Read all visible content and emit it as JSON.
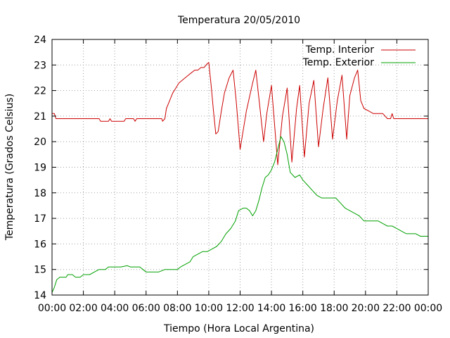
{
  "chart_data": {
    "type": "line",
    "title": "Temperatura 20/05/2010",
    "xlabel": "Tiempo (Hora Local Argentina)",
    "ylabel": "Temperatura (Grados Celsius)",
    "xlim": [
      0,
      24
    ],
    "ylim": [
      14,
      24
    ],
    "x_ticks": [
      {
        "value": 0,
        "label": "00:00"
      },
      {
        "value": 2,
        "label": "02:00"
      },
      {
        "value": 4,
        "label": "04:00"
      },
      {
        "value": 6,
        "label": "06:00"
      },
      {
        "value": 8,
        "label": "08:00"
      },
      {
        "value": 10,
        "label": "10:00"
      },
      {
        "value": 12,
        "label": "12:00"
      },
      {
        "value": 14,
        "label": "14:00"
      },
      {
        "value": 16,
        "label": "16:00"
      },
      {
        "value": 18,
        "label": "18:00"
      },
      {
        "value": 20,
        "label": "20:00"
      },
      {
        "value": 22,
        "label": "22:00"
      },
      {
        "value": 24,
        "label": "00:00"
      }
    ],
    "y_ticks": [
      {
        "value": 14,
        "label": "14"
      },
      {
        "value": 15,
        "label": "15"
      },
      {
        "value": 16,
        "label": "16"
      },
      {
        "value": 17,
        "label": "17"
      },
      {
        "value": 18,
        "label": "18"
      },
      {
        "value": 19,
        "label": "19"
      },
      {
        "value": 20,
        "label": "20"
      },
      {
        "value": 21,
        "label": "21"
      },
      {
        "value": 22,
        "label": "22"
      },
      {
        "value": 23,
        "label": "23"
      },
      {
        "value": 24,
        "label": "24"
      }
    ],
    "grid": true,
    "legend_position": "top-right",
    "series": [
      {
        "name": "Temp. Interior",
        "color": "#cc0000",
        "x": [
          0,
          0.15,
          0.25,
          0.35,
          3,
          3.1,
          3.6,
          3.7,
          3.8,
          4.6,
          4.7,
          5.2,
          5.3,
          5.4,
          7,
          7.05,
          7.2,
          7.3,
          7.5,
          7.7,
          7.9,
          8.1,
          8.3,
          8.5,
          8.7,
          8.9,
          9.1,
          9.3,
          9.5,
          9.7,
          9.9,
          10.0,
          10.15,
          10.3,
          10.45,
          10.6,
          10.8,
          11.0,
          11.3,
          11.55,
          11.75,
          12.0,
          12.4,
          12.8,
          13.0,
          13.25,
          13.5,
          13.7,
          14.0,
          14.4,
          14.7,
          15.0,
          15.3,
          15.6,
          15.8,
          16.1,
          16.4,
          16.7,
          17.0,
          17.3,
          17.6,
          17.9,
          18.2,
          18.5,
          18.8,
          19.0,
          19.3,
          19.5,
          19.7,
          19.9,
          20.2,
          20.5,
          20.8,
          21.1,
          21.4,
          21.6,
          21.7,
          21.8,
          21.9,
          24
        ],
        "y": [
          21.1,
          21.1,
          20.9,
          20.9,
          20.9,
          20.8,
          20.8,
          20.9,
          20.8,
          20.8,
          20.9,
          20.9,
          20.8,
          20.9,
          20.9,
          20.8,
          20.9,
          21.3,
          21.6,
          21.9,
          22.1,
          22.3,
          22.4,
          22.5,
          22.6,
          22.7,
          22.8,
          22.8,
          22.9,
          22.9,
          23.05,
          23.1,
          22.2,
          21.2,
          20.3,
          20.4,
          21.2,
          21.9,
          22.5,
          22.8,
          21.6,
          19.7,
          21.2,
          22.3,
          22.8,
          21.4,
          20.0,
          21.1,
          22.2,
          19.1,
          21.0,
          22.1,
          19.2,
          21.3,
          22.2,
          19.4,
          21.5,
          22.4,
          19.8,
          21.3,
          22.5,
          20.1,
          21.6,
          22.6,
          20.1,
          21.8,
          22.5,
          22.8,
          21.6,
          21.3,
          21.2,
          21.1,
          21.1,
          21.1,
          20.9,
          20.9,
          21.1,
          20.9,
          20.9,
          20.9
        ]
      },
      {
        "name": "Temp. Exterior",
        "color": "#00a000",
        "x": [
          0,
          0.15,
          0.3,
          0.5,
          0.9,
          1.0,
          1.3,
          1.5,
          1.8,
          2.0,
          2.4,
          2.7,
          3.0,
          3.4,
          3.6,
          4.0,
          4.4,
          4.8,
          5.0,
          5.3,
          5.6,
          5.8,
          6.0,
          6.4,
          6.8,
          7.2,
          7.6,
          8.0,
          8.2,
          8.5,
          8.8,
          9.0,
          9.3,
          9.6,
          9.9,
          10.2,
          10.5,
          10.8,
          11.1,
          11.4,
          11.7,
          11.9,
          12.2,
          12.4,
          12.6,
          12.8,
          13.0,
          13.2,
          13.4,
          13.6,
          13.8,
          14.0,
          14.2,
          14.4,
          14.6,
          14.8,
          15.0,
          15.2,
          15.5,
          15.8,
          16.0,
          16.3,
          16.6,
          16.9,
          17.2,
          17.5,
          17.8,
          18.1,
          18.4,
          18.7,
          19.0,
          19.3,
          19.6,
          19.9,
          20.2,
          20.5,
          20.8,
          21.1,
          21.4,
          21.7,
          22.0,
          22.3,
          22.6,
          22.9,
          23.2,
          23.5,
          23.8,
          24
        ],
        "y": [
          14.1,
          14.3,
          14.6,
          14.7,
          14.7,
          14.8,
          14.8,
          14.7,
          14.7,
          14.8,
          14.8,
          14.9,
          15.0,
          15.0,
          15.1,
          15.1,
          15.1,
          15.15,
          15.1,
          15.1,
          15.1,
          15.0,
          14.9,
          14.9,
          14.9,
          15.0,
          15.0,
          15.0,
          15.1,
          15.2,
          15.3,
          15.5,
          15.6,
          15.7,
          15.7,
          15.8,
          15.9,
          16.1,
          16.4,
          16.6,
          16.9,
          17.3,
          17.4,
          17.4,
          17.3,
          17.1,
          17.3,
          17.7,
          18.2,
          18.6,
          18.7,
          18.9,
          19.2,
          19.7,
          20.2,
          20.0,
          19.5,
          18.8,
          18.6,
          18.7,
          18.5,
          18.3,
          18.1,
          17.9,
          17.8,
          17.8,
          17.8,
          17.8,
          17.6,
          17.4,
          17.3,
          17.2,
          17.1,
          16.9,
          16.9,
          16.9,
          16.9,
          16.8,
          16.7,
          16.7,
          16.6,
          16.5,
          16.4,
          16.4,
          16.4,
          16.3,
          16.3,
          16.3
        ]
      }
    ]
  }
}
